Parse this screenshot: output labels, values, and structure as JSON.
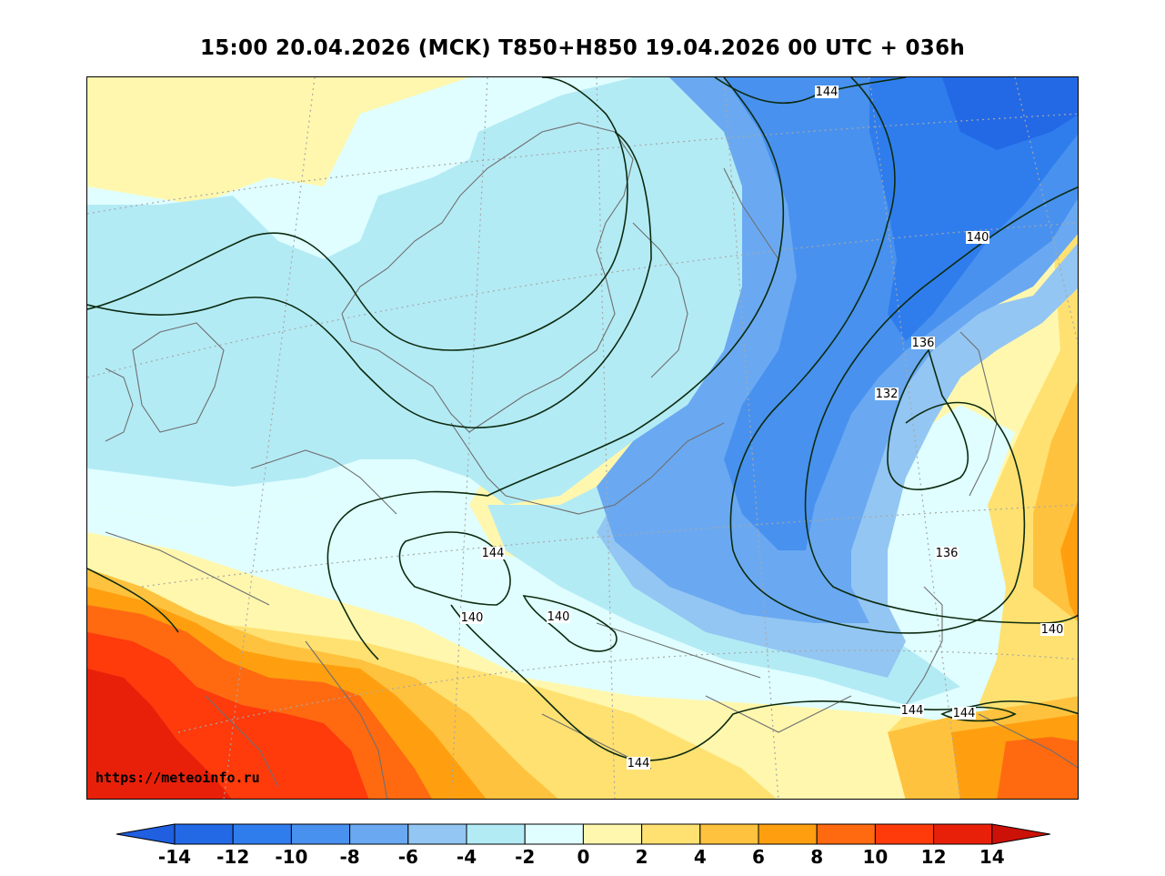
{
  "map": {
    "title": "15:00 20.04.2026 (MCK) T850+H850 19.04.2026 00 UTC + 036h",
    "watermark": "https://meteoinfo.ru",
    "contour_labels": [
      "144",
      "140",
      "136",
      "132",
      "136",
      "140",
      "140",
      "140",
      "144",
      "144",
      "144",
      "144"
    ],
    "colorbar": {
      "ticks": [
        "-14",
        "-12",
        "-10",
        "-8",
        "-6",
        "-4",
        "-2",
        "0",
        "2",
        "4",
        "6",
        "8",
        "10",
        "12",
        "14"
      ],
      "colors": [
        "#2369e6",
        "#2f7ded",
        "#4891ef",
        "#6aa9f1",
        "#93c6f2",
        "#b3ebf5",
        "#e0feff",
        "#fff7ad",
        "#ffe171",
        "#ffc23e",
        "#ff9f0f",
        "#ff6a11",
        "#ff3a0b",
        "#e8200a"
      ],
      "under_color": "#1f5fe0",
      "over_color": "#cc1108"
    },
    "colors": {
      "coast": "#6f6f6f",
      "contour": "#0d2b10",
      "grid": "#a7a7a7"
    }
  }
}
